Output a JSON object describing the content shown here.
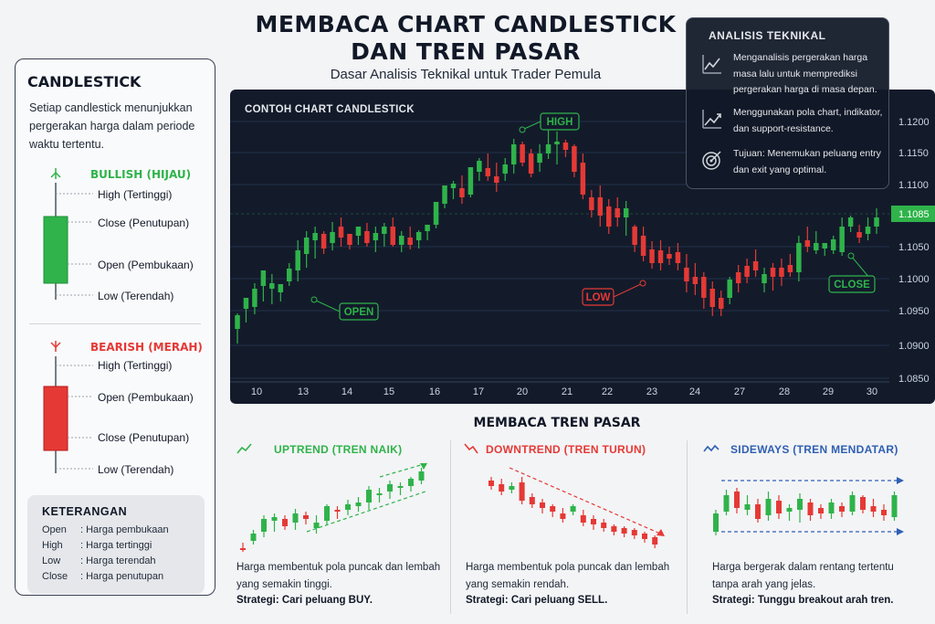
{
  "header": {
    "title_line1": "MEMBACA CHART CANDLESTICK",
    "title_line2": "DAN TREN PASAR",
    "subtitle": "Dasar Analisis Teknikal untuk Trader Pemula"
  },
  "candlestick_panel": {
    "title": "CANDLESTICK",
    "description": "Setiap candlestick menunjukkan pergerakan harga dalam periode waktu tertentu.",
    "bullish": {
      "label": "BULLISH (HIJAU)",
      "color": "#2fb34a",
      "high": "High (Tertinggi)",
      "close": "Close (Penutupan)",
      "open": "Open (Pembukaan)",
      "low": "Low (Terendah)"
    },
    "bearish": {
      "label": "BEARISH (MERAH)",
      "color": "#e53935",
      "high": "High (Tertinggi)",
      "open": "Open (Pembukaan)",
      "close": "Close (Penutupan)",
      "low": "Low (Terendah)"
    },
    "legend": {
      "title": "KETERANGAN",
      "rows": [
        {
          "key": "Open",
          "value": ": Harga pembukaan"
        },
        {
          "key": "High",
          "value": ": Harga tertinggi"
        },
        {
          "key": "Low",
          "value": ": Harga terendah"
        },
        {
          "key": "Close",
          "value": ": Harga penutupan"
        }
      ]
    }
  },
  "example_chart": {
    "title": "CONTOH CHART CANDLESTICK",
    "y_ticks": [
      "1.1200",
      "1.1150",
      "1.1100",
      "1.1085",
      "1.1050",
      "1.1000",
      "1.0950",
      "1.0900",
      "1.0850"
    ],
    "current_price": "1.1085",
    "x_ticks": [
      "10",
      "13",
      "14",
      "15",
      "16",
      "17",
      "20",
      "21",
      "22",
      "23",
      "24",
      "27",
      "28",
      "29",
      "30"
    ],
    "markers": {
      "high": "HIGH",
      "low": "LOW",
      "open": "OPEN",
      "close": "CLOSE"
    },
    "colors": {
      "bull": "#2fb34a",
      "bear": "#e53935",
      "background": "#131b2b",
      "price_tag": "#2fb34a"
    }
  },
  "technical_analysis": {
    "title": "ANALISIS TEKNIKAL",
    "items": [
      {
        "icon": "line-chart-icon",
        "text": "Menganalisis pergerakan harga masa lalu untuk memprediksi pergerakan harga di masa depan."
      },
      {
        "icon": "trend-chart-icon",
        "text": "Menggunakan pola chart, indikator, dan support-resistance."
      },
      {
        "icon": "target-icon",
        "text": "Tujuan: Menemukan peluang entry dan exit yang optimal."
      }
    ]
  },
  "trends": {
    "title": "MEMBACA TREN PASAR",
    "uptrend": {
      "title": "UPTREND (TREN NAIK)",
      "color": "#2fb34a",
      "desc": "Harga membentuk pola puncak dan lembah yang semakin tinggi.",
      "strategy": "Strategi: Cari peluang BUY."
    },
    "downtrend": {
      "title": "DOWNTREND (TREN TURUN)",
      "color": "#e53935",
      "desc": "Harga membentuk pola puncak dan lembah yang semakin rendah.",
      "strategy": "Strategi: Cari peluang SELL."
    },
    "sideways": {
      "title": "SIDEWAYS (TREN MENDATAR)",
      "color": "#2f5fb3",
      "desc": "Harga bergerak dalam rentang tertentu tanpa arah yang jelas.",
      "strategy": "Strategi: Tunggu breakout arah tren."
    }
  }
}
